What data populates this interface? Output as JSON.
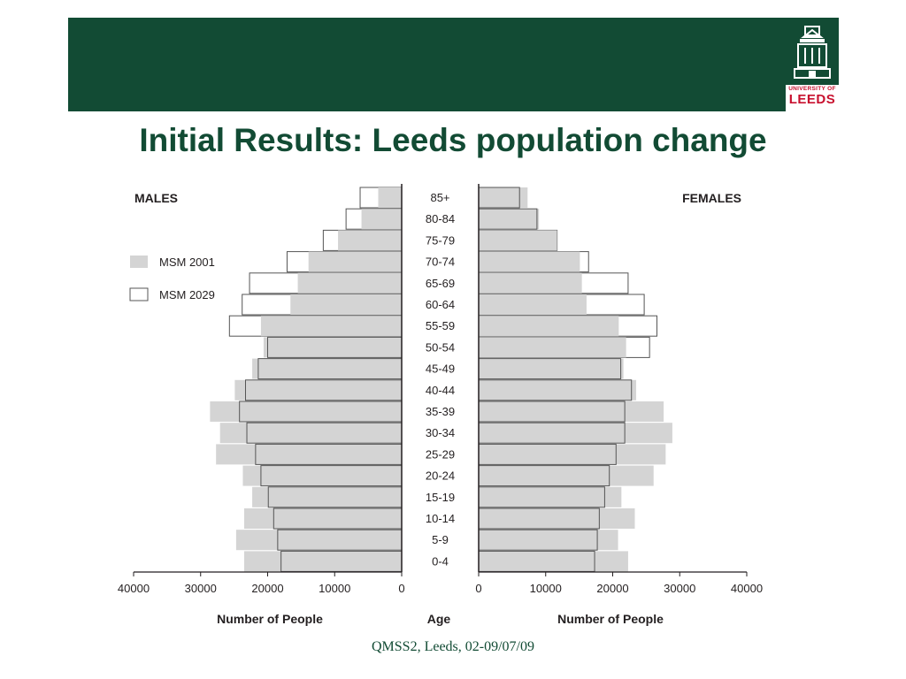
{
  "header": {
    "title": "Initial Results: Leeds population change",
    "banner_color": "#124b34",
    "title_color": "#124b34"
  },
  "logo": {
    "icon": "university-tower-icon",
    "text_small": "UNIVERSITY OF",
    "text_large": "LEEDS",
    "color": "#c8102e"
  },
  "footer": {
    "text": "QMSS2, Leeds, 02-09/07/09"
  },
  "chart_data": {
    "type": "population-pyramid",
    "left_label": "MALES",
    "right_label": "FEMALES",
    "center_axis_label": "Age",
    "xlabel": "Number of People",
    "x_range": [
      0,
      40000
    ],
    "x_ticks_left": [
      "40000",
      "30000",
      "20000",
      "10000",
      "0"
    ],
    "x_ticks_right": [
      "0",
      "10000",
      "20000",
      "30000",
      "40000"
    ],
    "legend": [
      {
        "name": "MSM 2001",
        "style": "filled",
        "color": "#d4d4d4"
      },
      {
        "name": "MSM 2029",
        "style": "outline",
        "color": "#ffffff"
      }
    ],
    "age_groups": [
      "85+",
      "80-84",
      "75-79",
      "70-74",
      "65-69",
      "60-64",
      "55-59",
      "50-54",
      "45-49",
      "40-44",
      "35-39",
      "30-34",
      "25-29",
      "20-24",
      "15-19",
      "10-14",
      "5-9",
      "0-4"
    ],
    "males": {
      "msm_2001": [
        3500,
        6000,
        9500,
        13900,
        15500,
        16600,
        21000,
        20600,
        22300,
        24900,
        28600,
        27100,
        27700,
        23700,
        22300,
        23500,
        24700,
        23500
      ],
      "msm_2029": [
        6200,
        8300,
        11700,
        17100,
        22700,
        23800,
        25700,
        20000,
        21400,
        23300,
        24200,
        23100,
        21800,
        21000,
        19900,
        19100,
        18500,
        18000
      ]
    },
    "females": {
      "msm_2001": [
        7300,
        9000,
        11700,
        15100,
        15400,
        16100,
        20900,
        22000,
        21600,
        23500,
        27600,
        28900,
        27900,
        26100,
        21300,
        23300,
        20800,
        22300
      ],
      "msm_2029": [
        6100,
        8700,
        11700,
        16400,
        22300,
        24700,
        26600,
        25500,
        21200,
        22800,
        21800,
        21800,
        20500,
        19500,
        18800,
        18000,
        17700,
        17300
      ]
    }
  }
}
